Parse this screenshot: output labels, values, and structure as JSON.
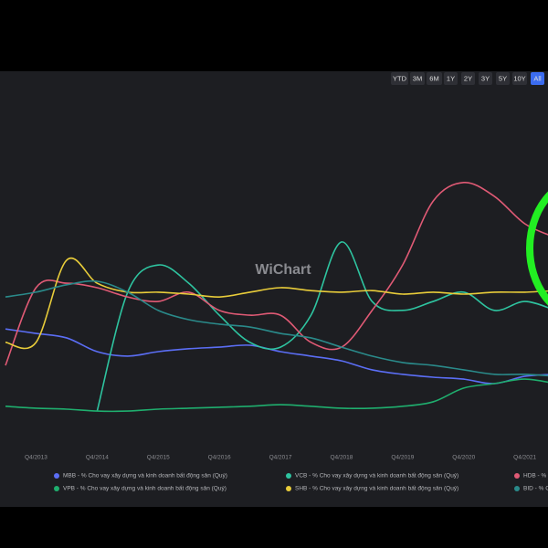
{
  "range_buttons": [
    "YTD",
    "3M",
    "6M",
    "1Y",
    "2Y",
    "3Y",
    "5Y",
    "10Y",
    "All"
  ],
  "active_range": "All",
  "watermark": "WiChart",
  "chart_data": {
    "type": "line",
    "categories": [
      null,
      "Q4/2013",
      null,
      "Q4/2014",
      null,
      "Q4/2015",
      null,
      "Q4/2016",
      null,
      "Q4/2017",
      null,
      "Q4/2018",
      null,
      "Q4/2019",
      null,
      "Q4/2020",
      null,
      "Q4/2021",
      null
    ],
    "ylim": [
      0,
      110
    ],
    "series": [
      {
        "name": "MBB - % Cho vay xây dựng và kinh doanh bất động sản (Quý)",
        "color": "#5b6ef5",
        "values": [
          37.1,
          35.7,
          34.3,
          30,
          28.6,
          30,
          30.9,
          31.4,
          32,
          30,
          28.6,
          27.1,
          24.3,
          22.9,
          22,
          21.4,
          20,
          22.3,
          22.9
        ]
      },
      {
        "name": "VCB - % Cho vay xây dựng và kinh doanh bất động sản (Quý)",
        "color": "#2ec4a0",
        "values": [
          null,
          null,
          null,
          11.4,
          48.6,
          57.1,
          51.4,
          41.4,
          32.9,
          31.4,
          41.4,
          64.3,
          45.7,
          42.9,
          45.7,
          48.6,
          42.9,
          45.7,
          42.9
        ]
      },
      {
        "name": "HDB - %",
        "color": "#e05a75",
        "values": [
          25.7,
          50,
          51.4,
          50,
          47.1,
          45.7,
          48.6,
          42.9,
          41.4,
          41.4,
          32.9,
          31.4,
          42.9,
          57.1,
          77.1,
          82.9,
          78.6,
          70,
          65.7
        ]
      },
      {
        "name": "VPB - % Cho vay xây dựng và kinh doanh bất động sản (Quý)",
        "color": "#1fae6e",
        "values": [
          12.9,
          12.3,
          12,
          11.4,
          11.4,
          12,
          12.3,
          12.6,
          12.9,
          13.4,
          12.9,
          12.3,
          12.3,
          12.9,
          14.3,
          18.6,
          20,
          21.4,
          20
        ]
      },
      {
        "name": "SHB - % Cho vay xây dựng và kinh doanh bất động sản (Quý)",
        "color": "#e8cc3a",
        "values": [
          32.9,
          32.9,
          58.6,
          51.4,
          48.6,
          48.6,
          48,
          47.1,
          48.6,
          50,
          49.1,
          48.6,
          49.1,
          48,
          48.6,
          48,
          48.6,
          48.6,
          49.1
        ]
      },
      {
        "name": "BID - % C",
        "color": "#2a8a8a",
        "values": [
          47.1,
          48.6,
          50.9,
          52,
          48.6,
          42.9,
          40,
          38.6,
          37.7,
          35.7,
          34.3,
          31.4,
          28.6,
          26.6,
          25.7,
          24.3,
          22.9,
          22.9,
          22.3
        ]
      }
    ]
  }
}
